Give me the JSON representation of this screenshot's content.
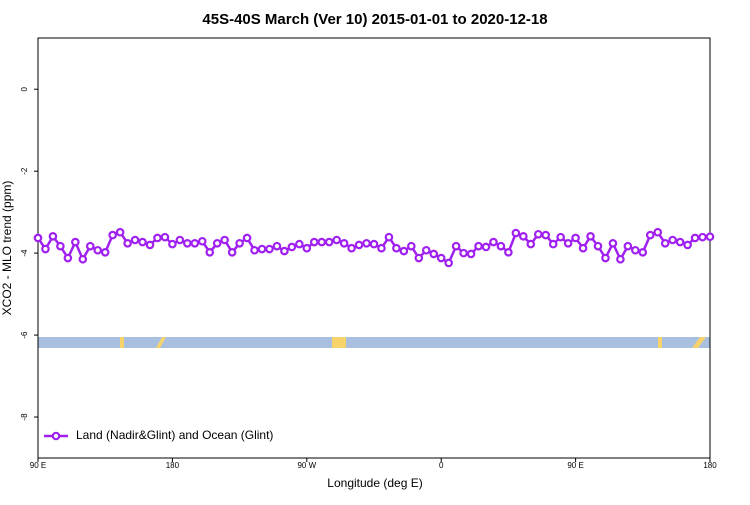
{
  "chart_data": {
    "type": "line",
    "title": "45S-40S March (Ver 10)   2015-01-01 to 2020-12-18",
    "x_label": "Longitude (deg E)",
    "y_label": "XCO2 - MLO trend (ppm)",
    "xlim": [
      90,
      540
    ],
    "ylim": [
      -9,
      1.25
    ],
    "xticks": [
      {
        "value": 90,
        "label": "90 E"
      },
      180,
      {
        "value": 270,
        "label": "90 W"
      },
      {
        "value": 360,
        "label": "0"
      },
      {
        "value": 450,
        "label": "90 E"
      },
      {
        "value": 540,
        "label": "180"
      }
    ],
    "yticks": [
      -8,
      -6,
      -4,
      -2,
      0
    ],
    "legend": "bottomleft",
    "x": [
      90,
      95,
      100,
      105,
      110,
      115,
      120,
      125,
      130,
      135,
      140,
      145,
      150,
      155,
      160,
      165,
      170,
      175,
      180,
      185,
      190,
      195,
      200,
      205,
      210,
      215,
      220,
      225,
      230,
      235,
      240,
      245,
      250,
      255,
      260,
      265,
      270,
      275,
      280,
      285,
      290,
      295,
      300,
      305,
      310,
      315,
      320,
      325,
      330,
      335,
      340,
      345,
      350,
      355,
      360,
      365,
      370,
      375,
      380,
      385,
      390,
      395,
      400,
      405,
      410,
      415,
      420,
      425,
      430,
      435,
      440,
      445,
      450,
      455,
      460,
      465,
      470,
      475,
      480,
      485,
      490,
      495,
      500,
      505,
      510,
      515,
      520,
      525,
      530,
      535,
      540
    ],
    "series": [
      {
        "name": "Land (Nadir&Glint) and Ocean (Glint)",
        "color": "#a020f0",
        "values": [
          -3.63,
          -3.9,
          -3.59,
          -3.83,
          -4.12,
          -3.73,
          -4.15,
          -3.83,
          -3.93,
          -3.98,
          -3.56,
          -3.49,
          -3.76,
          -3.68,
          -3.73,
          -3.8,
          -3.63,
          -3.61,
          -3.78,
          -3.68,
          -3.76,
          -3.76,
          -3.71,
          -3.98,
          -3.76,
          -3.68,
          -3.98,
          -3.76,
          -3.63,
          -3.93,
          -3.9,
          -3.9,
          -3.83,
          -3.95,
          -3.85,
          -3.78,
          -3.88,
          -3.73,
          -3.73,
          -3.73,
          -3.68,
          -3.76,
          -3.88,
          -3.8,
          -3.76,
          -3.78,
          -3.88,
          -3.61,
          -3.88,
          -3.95,
          -3.83,
          -4.12,
          -3.93,
          -4.02,
          -4.12,
          -4.24,
          -3.83,
          -4.0,
          -4.02,
          -3.83,
          -3.85,
          -3.73,
          -3.83,
          -3.98,
          -3.51,
          -3.59,
          -3.78,
          -3.54,
          -3.56,
          -3.78,
          -3.61,
          -3.76,
          -3.63,
          -3.88,
          -3.59,
          -3.83,
          -4.12,
          -3.76,
          -4.15,
          -3.83,
          -3.93,
          -3.98,
          -3.56,
          -3.49,
          -3.76,
          -3.68,
          -3.73,
          -3.8,
          -3.63,
          -3.61,
          -3.6
        ]
      }
    ]
  }
}
